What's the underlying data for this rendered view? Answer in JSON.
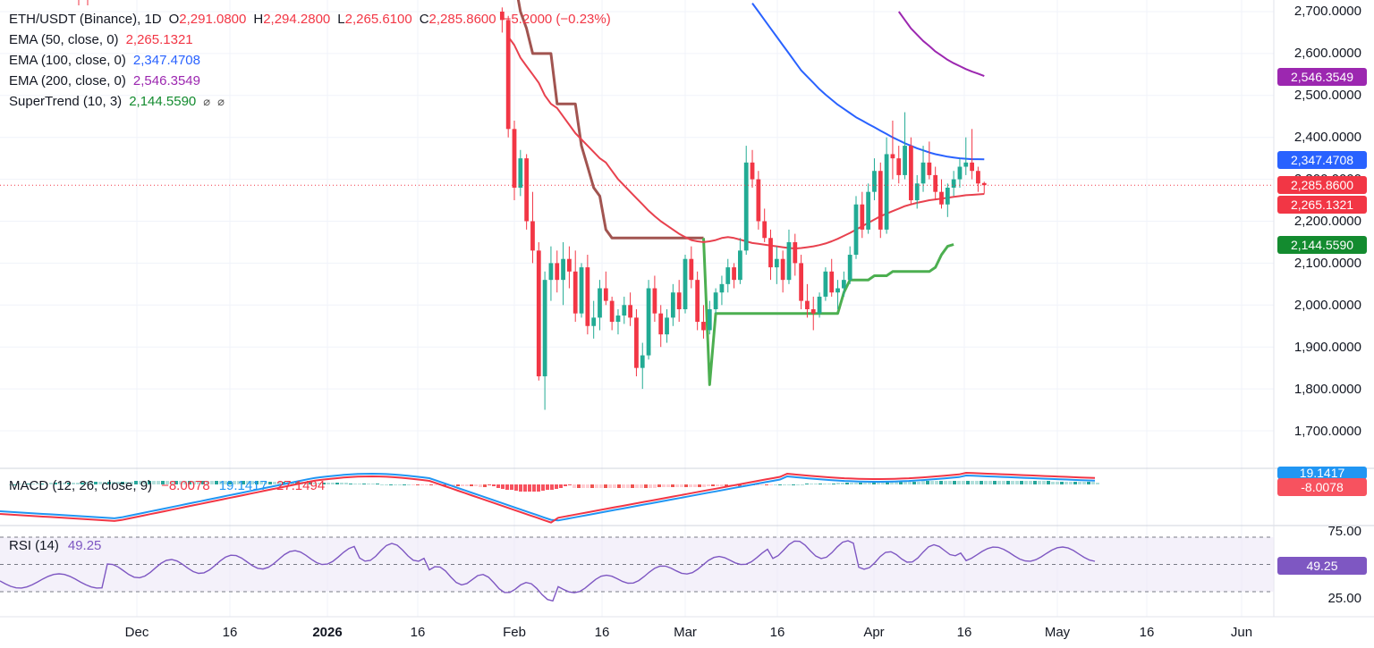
{
  "legend": {
    "symbol": "ETH/USDT (Binance), 1D",
    "o_label": "O",
    "open": "2,291.0800",
    "h_label": "H",
    "high": "2,294.2800",
    "l_label": "L",
    "low": "2,265.6100",
    "c_label": "C",
    "close": "2,285.8600",
    "change": "−5.2000 (−0.23%)",
    "ema50_label": "EMA (50, close, 0)",
    "ema50_value": "2,265.1321",
    "ema100_label": "EMA (100, close, 0)",
    "ema100_value": "2,347.4708",
    "ema200_label": "EMA (200, close, 0)",
    "ema200_value": "2,546.3549",
    "st_label": "SuperTrend (10, 3)",
    "st_value": "2,144.5590",
    "st_icon1": "⌀",
    "st_icon2": "⌀"
  },
  "macd_legend": {
    "label": "MACD (12, 26, close, 9)",
    "hist": "−8.0078",
    "macd": "19.1417",
    "signal": "27.1494"
  },
  "rsi_legend": {
    "label": "RSI (14)",
    "value": "49.25"
  },
  "price_tags": {
    "ema200": "2,546.3549",
    "ema100": "2,347.4708",
    "close": "2,285.8600",
    "ema50": "2,265.1321",
    "supertrend": "2,144.5590",
    "macd_hidden": "19.1417",
    "macd_hist": "-8.0078",
    "rsi": "49.25"
  },
  "colors": {
    "up": "#22ab94",
    "down": "#f23645",
    "ema50": "#e8414e",
    "ema100": "#2962ff",
    "ema200": "#9c27b0",
    "supertrend_up": "#4caf50",
    "supertrend_down": "#a15450",
    "macd": "#2196f3",
    "signal": "#f23645",
    "rsi": "#7e57c2"
  },
  "chart_data": [
    {
      "type": "candlestick",
      "title": "ETH/USDT (Binance), 1D",
      "y_axis_labels": [
        "2,700.0000",
        "2,600.0000",
        "2,500.0000",
        "2,400.0000",
        "2,300.0000",
        "2,200.0000",
        "2,100.0000",
        "2,000.0000",
        "1,900.0000",
        "1,800.0000",
        "1,700.0000"
      ],
      "x_axis_labels": [
        "Dec",
        "16",
        "2026",
        "16",
        "Feb",
        "16",
        "Mar",
        "16",
        "Apr",
        "16",
        "May",
        "16",
        "Jun"
      ],
      "ylim": [
        1650,
        2720
      ],
      "candles_start": "2026-01-30",
      "candles": [
        [
          2700,
          2710,
          2650,
          2680
        ],
        [
          2680,
          2690,
          2400,
          2420
        ],
        [
          2420,
          2440,
          2250,
          2280
        ],
        [
          2280,
          2370,
          2260,
          2350
        ],
        [
          2350,
          2360,
          2180,
          2200
        ],
        [
          2200,
          2270,
          2100,
          2130
        ],
        [
          2130,
          2150,
          1820,
          1830
        ],
        [
          1830,
          2080,
          1750,
          2060
        ],
        [
          2060,
          2140,
          2010,
          2100
        ],
        [
          2100,
          2130,
          2030,
          2060
        ],
        [
          2060,
          2150,
          2000,
          2110
        ],
        [
          2110,
          2140,
          2040,
          2080
        ],
        [
          2080,
          2130,
          1960,
          1980
        ],
        [
          1980,
          2100,
          1970,
          2090
        ],
        [
          2090,
          2120,
          1930,
          1950
        ],
        [
          1950,
          2010,
          1920,
          1970
        ],
        [
          1970,
          2060,
          1940,
          2040
        ],
        [
          2040,
          2080,
          2000,
          2010
        ],
        [
          2010,
          2020,
          1940,
          1960
        ],
        [
          1960,
          1990,
          1930,
          1975
        ],
        [
          1975,
          2020,
          1955,
          2000
        ],
        [
          2000,
          2030,
          1950,
          1970
        ],
        [
          1970,
          1990,
          1830,
          1850
        ],
        [
          1850,
          1910,
          1800,
          1880
        ],
        [
          1880,
          2060,
          1870,
          2040
        ],
        [
          2040,
          2070,
          1960,
          1980
        ],
        [
          1980,
          2000,
          1900,
          1930
        ],
        [
          1930,
          1990,
          1910,
          1970
        ],
        [
          1970,
          2050,
          1950,
          2030
        ],
        [
          2030,
          2060,
          1960,
          1990
        ],
        [
          1990,
          2120,
          1980,
          2110
        ],
        [
          2110,
          2140,
          2040,
          2060
        ],
        [
          2060,
          2080,
          1940,
          1960
        ],
        [
          1960,
          2000,
          1920,
          1940
        ],
        [
          1940,
          2010,
          1930,
          1990
        ],
        [
          1990,
          2040,
          1980,
          2030
        ],
        [
          2030,
          2070,
          2000,
          2050
        ],
        [
          2050,
          2110,
          2030,
          2090
        ],
        [
          2090,
          2100,
          2040,
          2060
        ],
        [
          2060,
          2160,
          2050,
          2130
        ],
        [
          2130,
          2380,
          2120,
          2340
        ],
        [
          2340,
          2370,
          2280,
          2300
        ],
        [
          2300,
          2320,
          2180,
          2200
        ],
        [
          2200,
          2230,
          2150,
          2160
        ],
        [
          2160,
          2180,
          2060,
          2090
        ],
        [
          2090,
          2140,
          2050,
          2110
        ],
        [
          2110,
          2130,
          2030,
          2060
        ],
        [
          2060,
          2180,
          2050,
          2150
        ],
        [
          2150,
          2170,
          2070,
          2100
        ],
        [
          2100,
          2120,
          1990,
          2010
        ],
        [
          2010,
          2050,
          1970,
          1990
        ],
        [
          1990,
          2020,
          1940,
          1980
        ],
        [
          1980,
          2030,
          1970,
          2020
        ],
        [
          2020,
          2090,
          2010,
          2080
        ],
        [
          2080,
          2110,
          2020,
          2030
        ],
        [
          2030,
          2060,
          1990,
          2040
        ],
        [
          2040,
          2080,
          2020,
          2060
        ],
        [
          2060,
          2140,
          2050,
          2120
        ],
        [
          2120,
          2260,
          2110,
          2240
        ],
        [
          2240,
          2270,
          2160,
          2180
        ],
        [
          2180,
          2290,
          2170,
          2270
        ],
        [
          2270,
          2350,
          2250,
          2320
        ],
        [
          2320,
          2340,
          2160,
          2180
        ],
        [
          2180,
          2400,
          2170,
          2360
        ],
        [
          2360,
          2440,
          2300,
          2350
        ],
        [
          2350,
          2380,
          2290,
          2310
        ],
        [
          2310,
          2460,
          2300,
          2380
        ],
        [
          2380,
          2400,
          2240,
          2250
        ],
        [
          2250,
          2310,
          2230,
          2290
        ],
        [
          2290,
          2380,
          2270,
          2340
        ],
        [
          2340,
          2390,
          2300,
          2310
        ],
        [
          2310,
          2330,
          2250,
          2270
        ],
        [
          2270,
          2300,
          2230,
          2240
        ],
        [
          2240,
          2290,
          2210,
          2280
        ],
        [
          2280,
          2320,
          2260,
          2300
        ],
        [
          2300,
          2350,
          2280,
          2330
        ],
        [
          2330,
          2400,
          2310,
          2340
        ],
        [
          2340,
          2420,
          2300,
          2320
        ],
        [
          2320,
          2330,
          2270,
          2290
        ],
        [
          2291.08,
          2294.28,
          2265.61,
          2285.86
        ]
      ],
      "ema50": [
        2640,
        2620,
        2590,
        2570,
        2550,
        2530,
        2500,
        2480,
        2470,
        2450,
        2430,
        2410,
        2395,
        2380,
        2365,
        2350,
        2340,
        2320,
        2300,
        2285,
        2270,
        2255,
        2240,
        2225,
        2212,
        2200,
        2190,
        2180,
        2170,
        2162,
        2155,
        2152,
        2150,
        2152,
        2155,
        2160,
        2162,
        2160,
        2156,
        2152,
        2148,
        2146,
        2144,
        2142,
        2140,
        2138,
        2136,
        2135,
        2136,
        2138,
        2140,
        2143,
        2147,
        2152,
        2158,
        2165,
        2172,
        2180,
        2188,
        2196,
        2204,
        2212,
        2218,
        2224,
        2230,
        2236,
        2240,
        2244,
        2247,
        2250,
        2252,
        2254,
        2256,
        2258,
        2260,
        2262,
        2263,
        2264,
        2265.13
      ],
      "ema100": [
        2720,
        2700,
        2680,
        2660,
        2640,
        2620,
        2600,
        2580,
        2560,
        2545,
        2530,
        2515,
        2502,
        2490,
        2478,
        2468,
        2458,
        2448,
        2440,
        2432,
        2424,
        2416,
        2408,
        2400,
        2393,
        2386,
        2380,
        2374,
        2369,
        2364,
        2360,
        2357,
        2354,
        2352,
        2350,
        2349,
        2348,
        2348,
        2347.47
      ],
      "ema200": [
        2700,
        2680,
        2660,
        2645,
        2630,
        2618,
        2605,
        2595,
        2585,
        2577,
        2570,
        2563,
        2557,
        2552,
        2546.35
      ],
      "supertrend": [
        2860,
        2780,
        2700,
        2660,
        2600,
        2600,
        2600,
        2600,
        2480,
        2480,
        2480,
        2480,
        2380,
        2330,
        2280,
        2260,
        2180,
        2160,
        2160,
        2160,
        2160,
        2160,
        2160,
        2160,
        2160,
        2160,
        2160,
        2160,
        2160,
        2160,
        2160,
        2160,
        2160,
        1810,
        1980,
        1980,
        1980,
        1980,
        1980,
        1980,
        1980,
        1980,
        1980,
        1980,
        1980,
        1980,
        1980,
        1980,
        1980,
        1980,
        1980,
        1980,
        1980,
        1980,
        1980,
        2030,
        2060,
        2060,
        2060,
        2060,
        2070,
        2070,
        2070,
        2080,
        2080,
        2080,
        2080,
        2080,
        2080,
        2080,
        2090,
        2120,
        2140,
        2144.56
      ],
      "legend_values": {
        "ema50": 2265.1321,
        "ema100": 2347.4708,
        "ema200": 2546.3549,
        "supertrend": 2144.559
      }
    },
    {
      "type": "macd",
      "title": "MACD (12, 26, close, 9)",
      "values": {
        "histogram": -8.0078,
        "macd": 19.1417,
        "signal": 27.1494
      }
    },
    {
      "type": "line",
      "title": "RSI (14)",
      "y_axis_labels": [
        "75.00",
        "25.00"
      ],
      "ylim": [
        20,
        80
      ],
      "value": 49.25
    }
  ]
}
